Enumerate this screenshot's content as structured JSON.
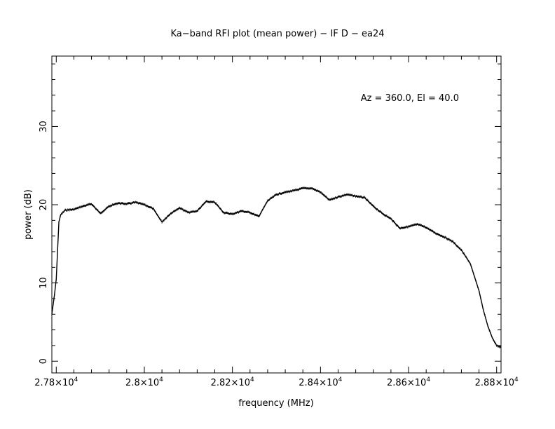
{
  "chart_data": {
    "type": "line",
    "title": "Ka−band RFI plot (mean power) − IF D − ea24",
    "annotation": "Az = 360.0, El = 40.0",
    "xlabel": "frequency (MHz)",
    "ylabel": "power (dB)",
    "xlim": [
      27790,
      28810
    ],
    "ylim": [
      -1.5,
      39
    ],
    "xticks": [
      27800,
      28000,
      28200,
      28400,
      28600,
      28800
    ],
    "xtick_labels": [
      {
        "mant": "2.78",
        "exp": "4"
      },
      {
        "mant": "2.8",
        "exp": "4"
      },
      {
        "mant": "2.82",
        "exp": "4"
      },
      {
        "mant": "2.84",
        "exp": "4"
      },
      {
        "mant": "2.86",
        "exp": "4"
      },
      {
        "mant": "2.88",
        "exp": "4"
      }
    ],
    "yticks": [
      0,
      10,
      20,
      30
    ],
    "ytick_labels": [
      "0",
      "10",
      "20",
      "30"
    ],
    "grid": false,
    "series": [
      {
        "x": [
          27790,
          27796,
          27800,
          27806,
          27810,
          27820,
          27840,
          27860,
          27880,
          27900,
          27920,
          27940,
          27960,
          27980,
          28000,
          28020,
          28040,
          28060,
          28080,
          28100,
          28120,
          28140,
          28160,
          28180,
          28200,
          28220,
          28240,
          28260,
          28280,
          28300,
          28320,
          28340,
          28360,
          28380,
          28400,
          28420,
          28440,
          28460,
          28480,
          28500,
          28520,
          28540,
          28560,
          28580,
          28600,
          28620,
          28640,
          28660,
          28680,
          28700,
          28720,
          28740,
          28760,
          28770,
          28780,
          28790,
          28800,
          28810
        ],
        "y": [
          6.0,
          8.5,
          10.5,
          17.8,
          18.7,
          19.3,
          19.4,
          19.8,
          20.1,
          18.9,
          19.8,
          20.2,
          20.1,
          20.3,
          20.0,
          19.5,
          17.8,
          18.9,
          19.6,
          19.0,
          19.2,
          20.4,
          20.3,
          19.0,
          18.8,
          19.2,
          19.0,
          18.5,
          20.5,
          21.3,
          21.6,
          21.8,
          22.1,
          22.1,
          21.6,
          20.6,
          21.0,
          21.3,
          21.1,
          20.9,
          19.8,
          18.9,
          18.2,
          17.0,
          17.2,
          17.5,
          17.1,
          16.4,
          15.9,
          15.3,
          14.2,
          12.5,
          9.0,
          6.5,
          4.5,
          3.0,
          2.0,
          1.8
        ]
      }
    ]
  }
}
